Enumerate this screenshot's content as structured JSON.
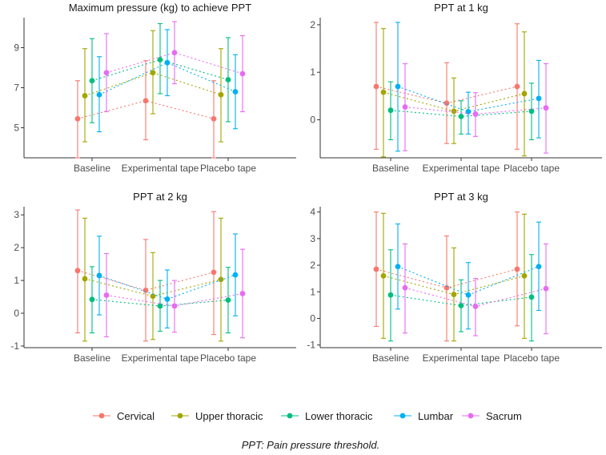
{
  "chart_data": [
    {
      "type": "scatter",
      "title": "Maximum pressure (kg) to achieve PPT",
      "categories": [
        "Baseline",
        "Experimental tape",
        "Placebo tape"
      ],
      "ylim": [
        3.5,
        10.5
      ],
      "yticks": [
        5,
        7,
        9
      ],
      "ytick_labels": [
        "5",
        "7",
        "9"
      ],
      "series": [
        {
          "name": "Cervical",
          "means": [
            5.45,
            6.35,
            5.45
          ],
          "lower": [
            3.5,
            4.4,
            3.5
          ],
          "upper": [
            7.35,
            8.35,
            7.35
          ]
        },
        {
          "name": "Upper thoracic",
          "means": [
            6.6,
            7.75,
            6.65
          ],
          "lower": [
            4.3,
            5.7,
            4.3
          ],
          "upper": [
            8.95,
            9.85,
            8.95
          ]
        },
        {
          "name": "Lower thoracic",
          "means": [
            7.35,
            8.4,
            7.4
          ],
          "lower": [
            5.25,
            6.7,
            5.3
          ],
          "upper": [
            9.45,
            10.2,
            9.5
          ]
        },
        {
          "name": "Lumbar",
          "means": [
            6.65,
            8.25,
            6.8
          ],
          "lower": [
            4.8,
            6.6,
            4.95
          ],
          "upper": [
            8.55,
            9.9,
            8.65
          ]
        },
        {
          "name": "Sacrum",
          "means": [
            7.75,
            8.75,
            7.7
          ],
          "lower": [
            5.8,
            7.2,
            5.8
          ],
          "upper": [
            9.7,
            10.3,
            9.6
          ]
        }
      ]
    },
    {
      "type": "scatter",
      "title": "PPT at 1 kg",
      "categories": [
        "Baseline",
        "Experimental tape",
        "Placebo tape"
      ],
      "ylim": [
        -0.8,
        2.15
      ],
      "yticks": [
        0,
        1,
        2
      ],
      "ytick_labels": [
        "0",
        "1",
        "2"
      ],
      "series": [
        {
          "name": "Cervical",
          "means": [
            0.7,
            0.35,
            0.7
          ],
          "lower": [
            -0.62,
            -0.5,
            -0.62
          ],
          "upper": [
            2.05,
            1.2,
            2.02
          ]
        },
        {
          "name": "Upper thoracic",
          "means": [
            0.58,
            0.18,
            0.55
          ],
          "lower": [
            -0.78,
            -0.5,
            -0.76
          ],
          "upper": [
            1.92,
            0.88,
            1.85
          ]
        },
        {
          "name": "Lower thoracic",
          "means": [
            0.2,
            0.07,
            0.18
          ],
          "lower": [
            -0.42,
            -0.3,
            -0.42
          ],
          "upper": [
            0.8,
            0.4,
            0.77
          ]
        },
        {
          "name": "Lumbar",
          "means": [
            0.7,
            0.17,
            0.45
          ],
          "lower": [
            -0.66,
            -0.3,
            -0.38
          ],
          "upper": [
            2.05,
            0.58,
            1.25
          ]
        },
        {
          "name": "Sacrum",
          "means": [
            0.27,
            0.12,
            0.25
          ],
          "lower": [
            -0.65,
            -0.35,
            -0.7
          ],
          "upper": [
            1.18,
            0.57,
            1.18
          ]
        }
      ]
    },
    {
      "type": "scatter",
      "title": "PPT at 2 kg",
      "categories": [
        "Baseline",
        "Experimental tape",
        "Placebo tape"
      ],
      "ylim": [
        -1.05,
        3.25
      ],
      "yticks": [
        -1,
        0,
        1,
        2,
        3
      ],
      "ytick_labels": [
        "-1",
        "0",
        "1",
        "2",
        "3"
      ],
      "series": [
        {
          "name": "Cervical",
          "means": [
            1.3,
            0.7,
            1.25
          ],
          "lower": [
            -0.6,
            -0.85,
            -0.65
          ],
          "upper": [
            3.15,
            2.25,
            3.1
          ]
        },
        {
          "name": "Upper thoracic",
          "means": [
            1.05,
            0.52,
            1.03
          ],
          "lower": [
            -0.85,
            -0.8,
            -0.85
          ],
          "upper": [
            2.9,
            1.85,
            2.9
          ]
        },
        {
          "name": "Lower thoracic",
          "means": [
            0.42,
            0.22,
            0.4
          ],
          "lower": [
            -0.6,
            -0.55,
            -0.6
          ],
          "upper": [
            1.42,
            1.0,
            1.4
          ]
        },
        {
          "name": "Lumbar",
          "means": [
            1.15,
            0.43,
            1.17
          ],
          "lower": [
            -0.05,
            -0.45,
            -0.08
          ],
          "upper": [
            2.35,
            1.32,
            2.42
          ]
        },
        {
          "name": "Sacrum",
          "means": [
            0.55,
            0.22,
            0.6
          ],
          "lower": [
            -0.72,
            -0.58,
            -0.75
          ],
          "upper": [
            1.82,
            1.0,
            1.95
          ]
        }
      ]
    },
    {
      "type": "scatter",
      "title": "PPT at 3 kg",
      "categories": [
        "Baseline",
        "Experimental tape",
        "Placebo tape"
      ],
      "ylim": [
        -1.1,
        4.2
      ],
      "yticks": [
        -1,
        0,
        1,
        2,
        3,
        4
      ],
      "ytick_labels": [
        "-1",
        "0",
        "1",
        "2",
        "3",
        "4"
      ],
      "series": [
        {
          "name": "Cervical",
          "means": [
            1.85,
            1.15,
            1.85
          ],
          "lower": [
            -0.3,
            -0.85,
            -0.28
          ],
          "upper": [
            4.0,
            3.1,
            4.0
          ]
        },
        {
          "name": "Upper thoracic",
          "means": [
            1.6,
            0.9,
            1.6
          ],
          "lower": [
            -0.75,
            -0.85,
            -0.75
          ],
          "upper": [
            3.95,
            2.65,
            3.92
          ]
        },
        {
          "name": "Lower thoracic",
          "means": [
            0.88,
            0.48,
            0.8
          ],
          "lower": [
            -0.85,
            -0.5,
            -0.85
          ],
          "upper": [
            2.58,
            1.45,
            2.4
          ]
        },
        {
          "name": "Lumbar",
          "means": [
            1.95,
            0.88,
            1.95
          ],
          "lower": [
            0.35,
            -0.4,
            0.3
          ],
          "upper": [
            3.55,
            2.1,
            3.62
          ]
        },
        {
          "name": "Sacrum",
          "means": [
            1.15,
            0.45,
            1.12
          ],
          "lower": [
            -0.55,
            -0.65,
            -0.58
          ],
          "upper": [
            2.8,
            1.5,
            2.8
          ]
        }
      ]
    }
  ],
  "legend": {
    "items": [
      {
        "label": "Cervical",
        "color": "#F8766D"
      },
      {
        "label": "Upper thoracic",
        "color": "#A3A500"
      },
      {
        "label": "Lower thoracic",
        "color": "#00BF7D"
      },
      {
        "label": "Lumbar",
        "color": "#00B0F6"
      },
      {
        "label": "Sacrum",
        "color": "#E76BF3"
      }
    ]
  },
  "caption": "PPT: Pain pressure threshold."
}
